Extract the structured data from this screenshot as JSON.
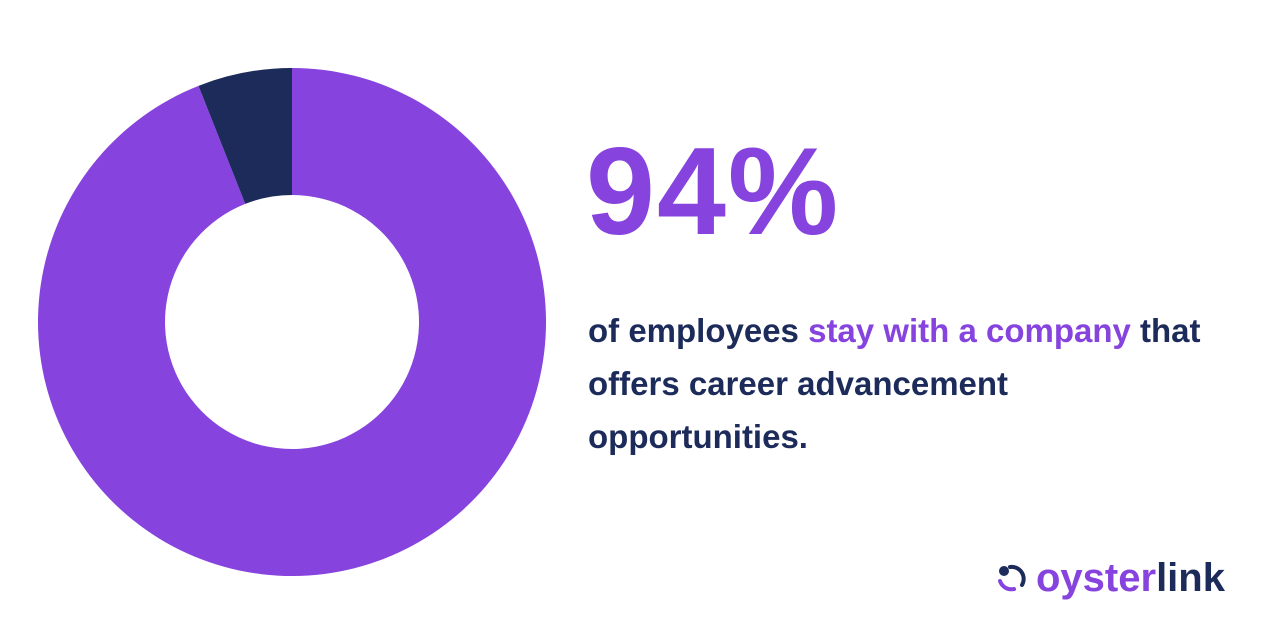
{
  "chart_data": {
    "type": "pie",
    "donut": true,
    "values": [
      94,
      6
    ],
    "colors": [
      "#8643dd",
      "#1c2b5a"
    ],
    "value_labels": [
      "94%",
      null
    ]
  },
  "description": [
    {
      "text": "of employees",
      "color": "#1c2b5a"
    },
    {
      "text": "stay with a company",
      "color": "#8643dd"
    },
    {
      "text": "that offers career advancement opportunities.",
      "color": "#1c2b5a"
    }
  ],
  "logo": [
    {
      "text": "oyster",
      "color": "#8643dd"
    },
    {
      "text": "link",
      "color": "#1c2b5a"
    }
  ]
}
